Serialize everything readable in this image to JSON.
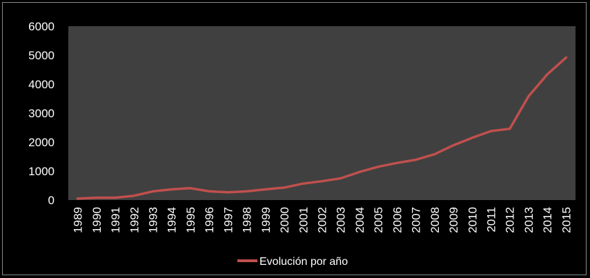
{
  "chart_data": {
    "type": "line",
    "title": "",
    "xlabel": "",
    "ylabel": "",
    "x": [
      "1989",
      "1990",
      "1991",
      "1992",
      "1993",
      "1994",
      "1995",
      "1996",
      "1997",
      "1998",
      "1999",
      "2000",
      "2001",
      "2002",
      "2003",
      "2004",
      "2005",
      "2006",
      "2007",
      "2008",
      "2009",
      "2010",
      "2011",
      "2012",
      "2013",
      "2014",
      "2015"
    ],
    "y_ticks": [
      "0",
      "1000",
      "2000",
      "3000",
      "4000",
      "5000",
      "6000"
    ],
    "ylim": [
      0,
      6000
    ],
    "grid": false,
    "legend_position": "bottom",
    "series": [
      {
        "name": "Evolución por año",
        "color": "#c0504d",
        "values": [
          50,
          80,
          80,
          150,
          300,
          370,
          410,
          300,
          270,
          300,
          370,
          430,
          570,
          650,
          750,
          970,
          1150,
          1280,
          1390,
          1580,
          1890,
          2150,
          2380,
          2460,
          3580,
          4340,
          4920
        ]
      }
    ],
    "plot_background": "#404040"
  }
}
